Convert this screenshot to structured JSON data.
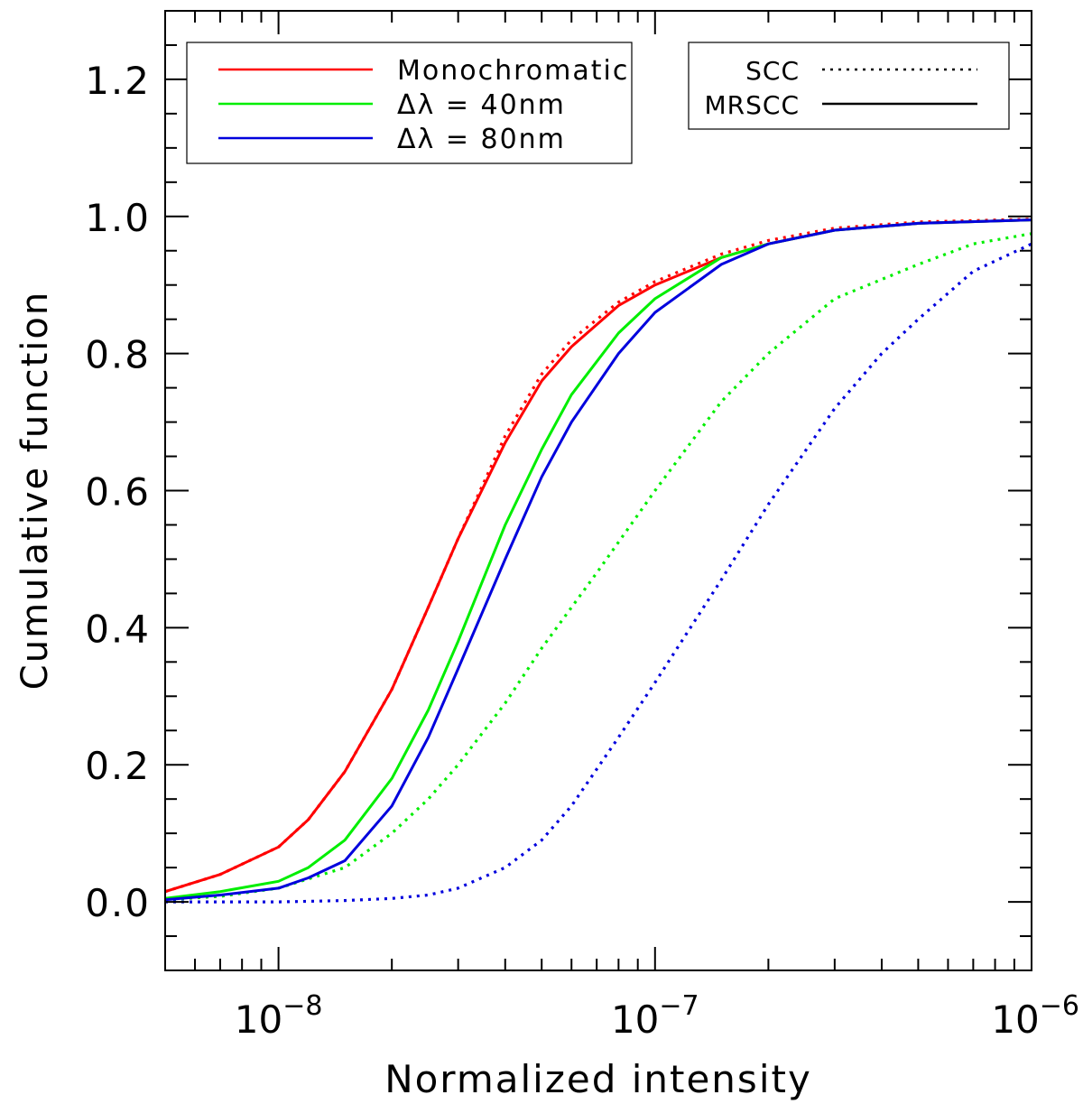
{
  "chart_data": {
    "type": "line",
    "title": "",
    "xlabel": "Normalized intensity",
    "ylabel": "Cumulative function",
    "xscale": "log",
    "xlim": [
      5e-09,
      1e-06
    ],
    "ylim": [
      -0.1,
      1.3
    ],
    "grid": false,
    "x_ticks": [
      {
        "value": 1e-08,
        "base": "10",
        "exp": "−8"
      },
      {
        "value": 1e-07,
        "base": "10",
        "exp": "−7"
      },
      {
        "value": 1e-06,
        "base": "10",
        "exp": "−6"
      }
    ],
    "y_ticks": [
      {
        "value": 0.0,
        "label": "0.0"
      },
      {
        "value": 0.2,
        "label": "0.2"
      },
      {
        "value": 0.4,
        "label": "0.4"
      },
      {
        "value": 0.6,
        "label": "0.6"
      },
      {
        "value": 0.8,
        "label": "0.8"
      },
      {
        "value": 1.0,
        "label": "1.0"
      },
      {
        "value": 1.2,
        "label": "1.2"
      }
    ],
    "legend_colors": {
      "position": "top-left",
      "entries": [
        {
          "label": "Monochromatic",
          "color": "#ff0000"
        },
        {
          "label": "Δλ = 40nm",
          "color": "#00ee00"
        },
        {
          "label": "Δλ = 80nm",
          "color": "#0000dd"
        }
      ]
    },
    "legend_styles": {
      "position": "top-right",
      "entries": [
        {
          "label": "SCC",
          "style": "dotted"
        },
        {
          "label": "MRSCC",
          "style": "solid"
        }
      ]
    },
    "series": [
      {
        "name": "Monochromatic MRSCC",
        "color": "#ff0000",
        "style": "solid",
        "x": [
          5e-09,
          7e-09,
          1e-08,
          1.2e-08,
          1.5e-08,
          2e-08,
          2.5e-08,
          3e-08,
          4e-08,
          5e-08,
          6e-08,
          8e-08,
          1e-07,
          1.5e-07,
          2e-07,
          3e-07,
          5e-07,
          1e-06
        ],
        "y": [
          0.015,
          0.04,
          0.08,
          0.12,
          0.19,
          0.31,
          0.43,
          0.53,
          0.67,
          0.76,
          0.81,
          0.87,
          0.9,
          0.94,
          0.96,
          0.98,
          0.99,
          0.995
        ]
      },
      {
        "name": "Monochromatic SCC",
        "color": "#ff0000",
        "style": "dotted",
        "x": [
          5e-09,
          7e-09,
          1e-08,
          1.2e-08,
          1.5e-08,
          2e-08,
          2.5e-08,
          3e-08,
          4e-08,
          5e-08,
          6e-08,
          8e-08,
          1e-07,
          1.5e-07,
          2e-07,
          3e-07,
          5e-07,
          1e-06
        ],
        "y": [
          0.015,
          0.04,
          0.08,
          0.12,
          0.19,
          0.31,
          0.43,
          0.53,
          0.68,
          0.77,
          0.82,
          0.875,
          0.905,
          0.945,
          0.965,
          0.983,
          0.992,
          0.996
        ]
      },
      {
        "name": "Δλ = 40nm MRSCC",
        "color": "#00ee00",
        "style": "solid",
        "x": [
          5e-09,
          7e-09,
          1e-08,
          1.2e-08,
          1.5e-08,
          2e-08,
          2.5e-08,
          3e-08,
          4e-08,
          5e-08,
          6e-08,
          8e-08,
          1e-07,
          1.5e-07,
          2e-07,
          3e-07,
          5e-07,
          1e-06
        ],
        "y": [
          0.005,
          0.015,
          0.03,
          0.05,
          0.09,
          0.18,
          0.28,
          0.38,
          0.55,
          0.66,
          0.74,
          0.83,
          0.88,
          0.94,
          0.96,
          0.98,
          0.99,
          0.995
        ]
      },
      {
        "name": "Δλ = 40nm SCC",
        "color": "#00ee00",
        "style": "dotted",
        "x": [
          5e-09,
          7e-09,
          1e-08,
          1.5e-08,
          2e-08,
          2.5e-08,
          3e-08,
          4e-08,
          5e-08,
          7e-08,
          1e-07,
          1.5e-07,
          2e-07,
          3e-07,
          5e-07,
          7e-07,
          1e-06
        ],
        "y": [
          0.003,
          0.008,
          0.02,
          0.05,
          0.1,
          0.15,
          0.2,
          0.29,
          0.37,
          0.48,
          0.6,
          0.73,
          0.8,
          0.88,
          0.93,
          0.96,
          0.975
        ]
      },
      {
        "name": "Δλ = 80nm MRSCC",
        "color": "#0000dd",
        "style": "solid",
        "x": [
          5e-09,
          7e-09,
          1e-08,
          1.2e-08,
          1.5e-08,
          2e-08,
          2.5e-08,
          3e-08,
          4e-08,
          5e-08,
          6e-08,
          8e-08,
          1e-07,
          1.5e-07,
          2e-07,
          3e-07,
          5e-07,
          1e-06
        ],
        "y": [
          0.003,
          0.01,
          0.02,
          0.035,
          0.06,
          0.14,
          0.24,
          0.34,
          0.5,
          0.62,
          0.7,
          0.8,
          0.86,
          0.93,
          0.96,
          0.98,
          0.99,
          0.995
        ]
      },
      {
        "name": "Δλ = 80nm SCC",
        "color": "#0000dd",
        "style": "dotted",
        "x": [
          5e-09,
          1e-08,
          1.5e-08,
          2e-08,
          2.5e-08,
          3e-08,
          4e-08,
          5e-08,
          6e-08,
          8e-08,
          1e-07,
          1.5e-07,
          2e-07,
          3e-07,
          4e-07,
          5e-07,
          7e-07,
          1e-06
        ],
        "y": [
          0.0,
          0.0,
          0.002,
          0.005,
          0.01,
          0.02,
          0.05,
          0.09,
          0.14,
          0.24,
          0.32,
          0.47,
          0.58,
          0.72,
          0.8,
          0.85,
          0.92,
          0.96
        ]
      }
    ]
  }
}
